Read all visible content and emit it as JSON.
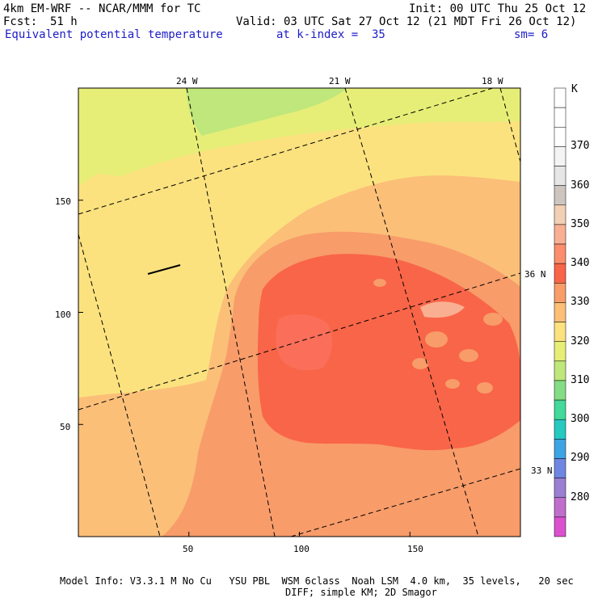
{
  "header": {
    "model": "4km EM-WRF -- NCAR/MMM for TC",
    "init": "Init: 00 UTC Thu 25 Oct 12",
    "fcst_label": "Fcst:",
    "fcst_value": "51 h",
    "valid": "Valid: 03 UTC Sat 27 Oct 12 (21 MDT Fri 26 Oct 12)",
    "field": "Equivalent potential temperature",
    "level": "at k-index =  35",
    "smoothing": "sm= 6"
  },
  "map": {
    "lon_labels": [
      "24 W",
      "21 W",
      "18 W"
    ],
    "lat_labels": [
      "36 N",
      "33 N"
    ],
    "x_ticks": [
      "50",
      "100",
      "150"
    ],
    "y_ticks": [
      "150",
      "100",
      "50"
    ],
    "x_tick_values": [
      50,
      100,
      150
    ],
    "y_tick_values": [
      150,
      100,
      50
    ],
    "grid_extent": {
      "x": [
        0,
        200
      ],
      "y": [
        0,
        200
      ]
    }
  },
  "colorbar": {
    "unit": "K",
    "labels": [
      "370",
      "360",
      "350",
      "340",
      "330",
      "320",
      "310",
      "300",
      "290",
      "280"
    ],
    "colors": [
      "#ffffff",
      "#ffffff",
      "#ffffff",
      "#f4f4f4",
      "#e6e6e6",
      "#cdc5c0",
      "#f2d0b6",
      "#f9b092",
      "#fb8d6c",
      "#f96548",
      "#f89c6a",
      "#fbbf78",
      "#fbe27f",
      "#e6ee77",
      "#bfe77b",
      "#84dd84",
      "#42d99a",
      "#26c9c0",
      "#3ca4e2",
      "#6e86e2",
      "#9b80d2",
      "#c06ecc",
      "#dc50d0"
    ]
  },
  "footer": {
    "line1": "Model Info: V3.3.1 M No Cu   YSU PBL  WSM 6class  Noah LSM  4.0 km,  35 levels,   20 sec",
    "line2": "DIFF; simple KM; 2D Smagor"
  }
}
